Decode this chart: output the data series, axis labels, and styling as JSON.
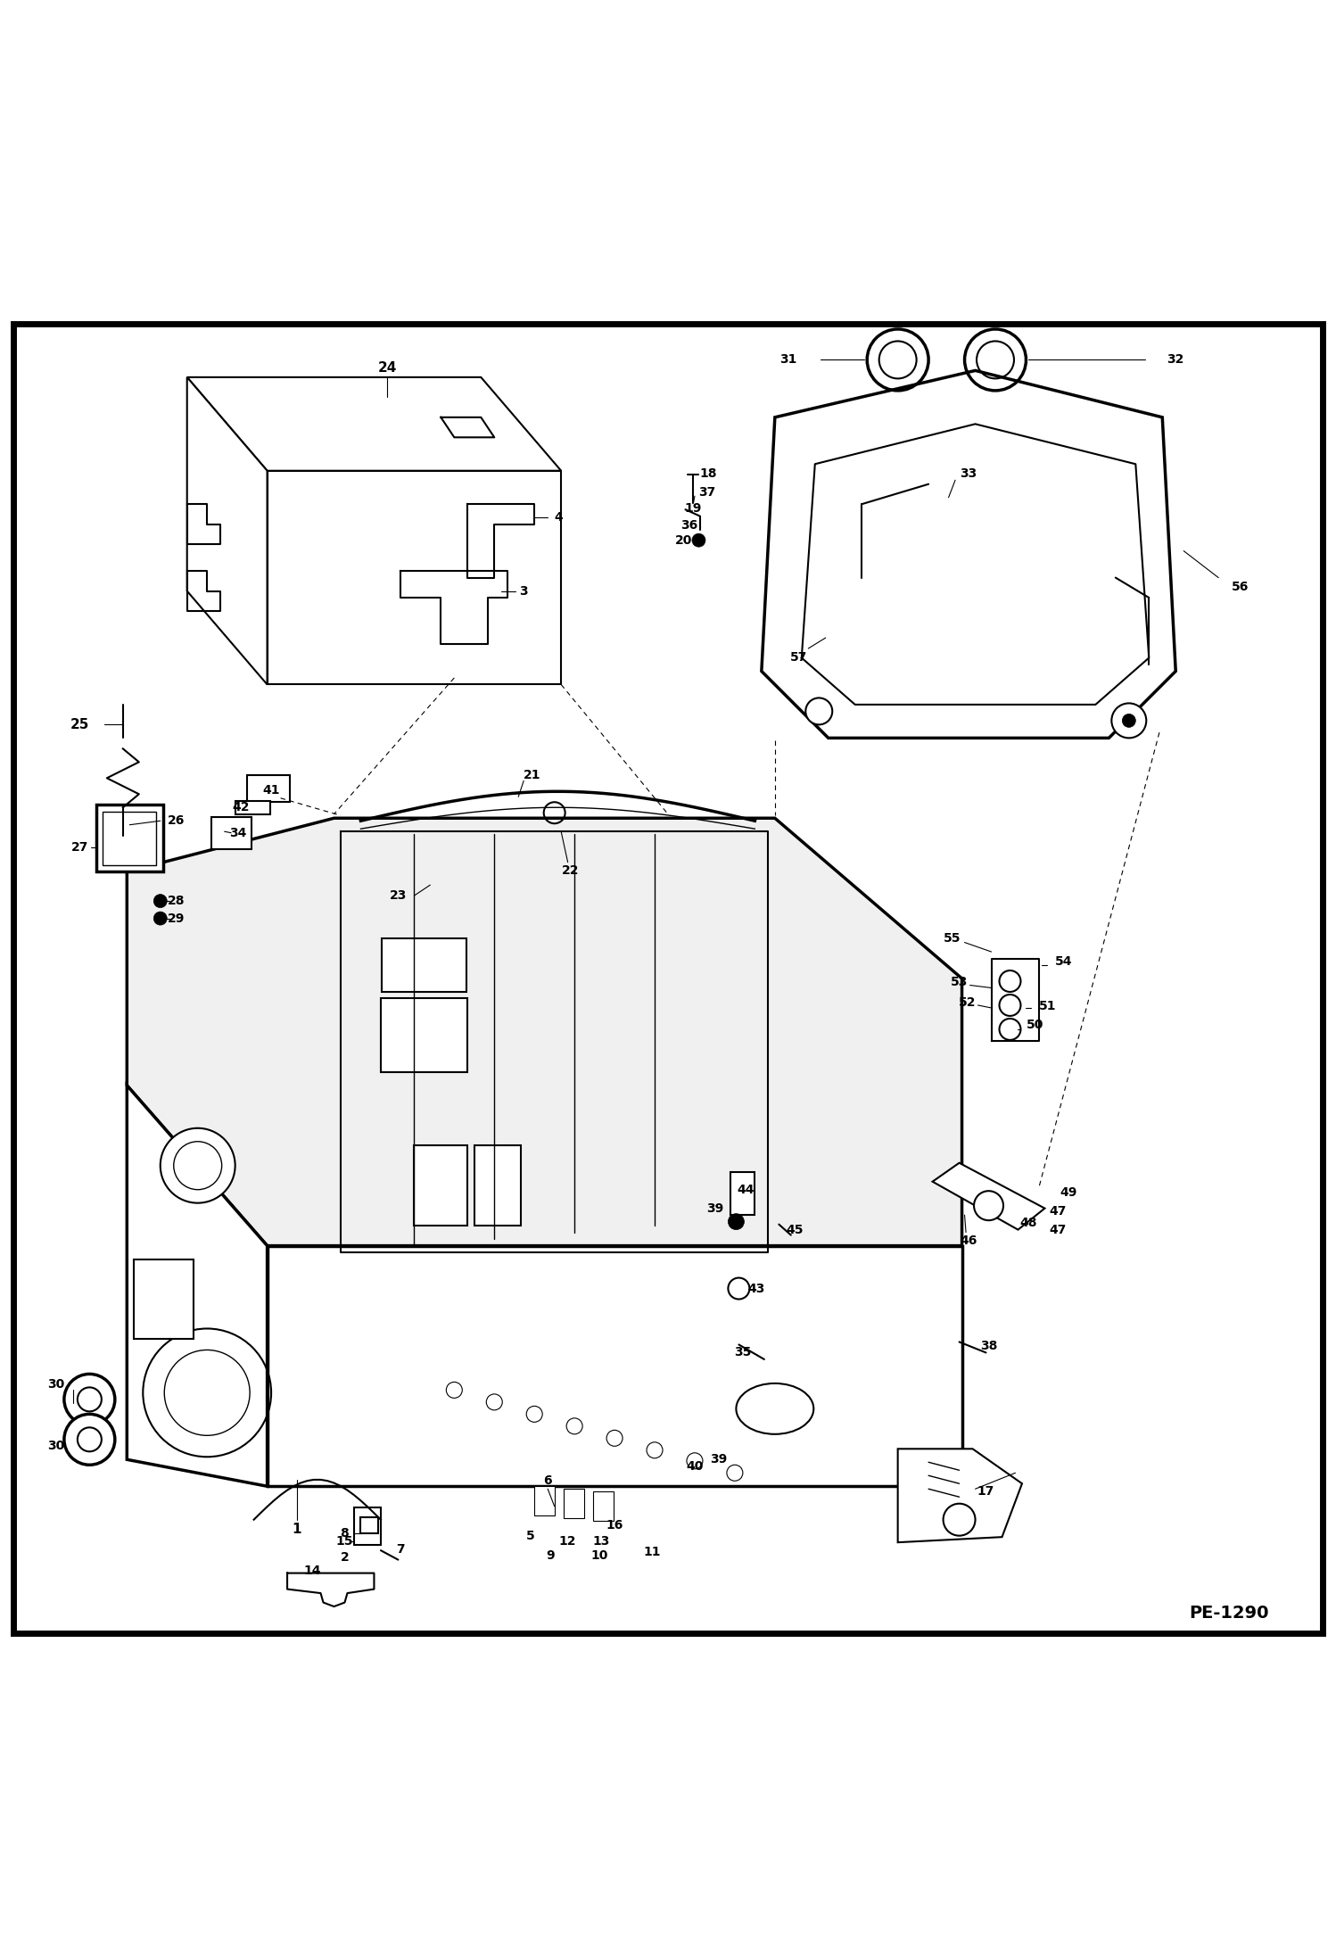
{
  "bg_color": "#ffffff",
  "border_color": "#000000",
  "page_id": "PE-1290",
  "fig_width": 14.98,
  "fig_height": 21.94,
  "dpi": 100
}
